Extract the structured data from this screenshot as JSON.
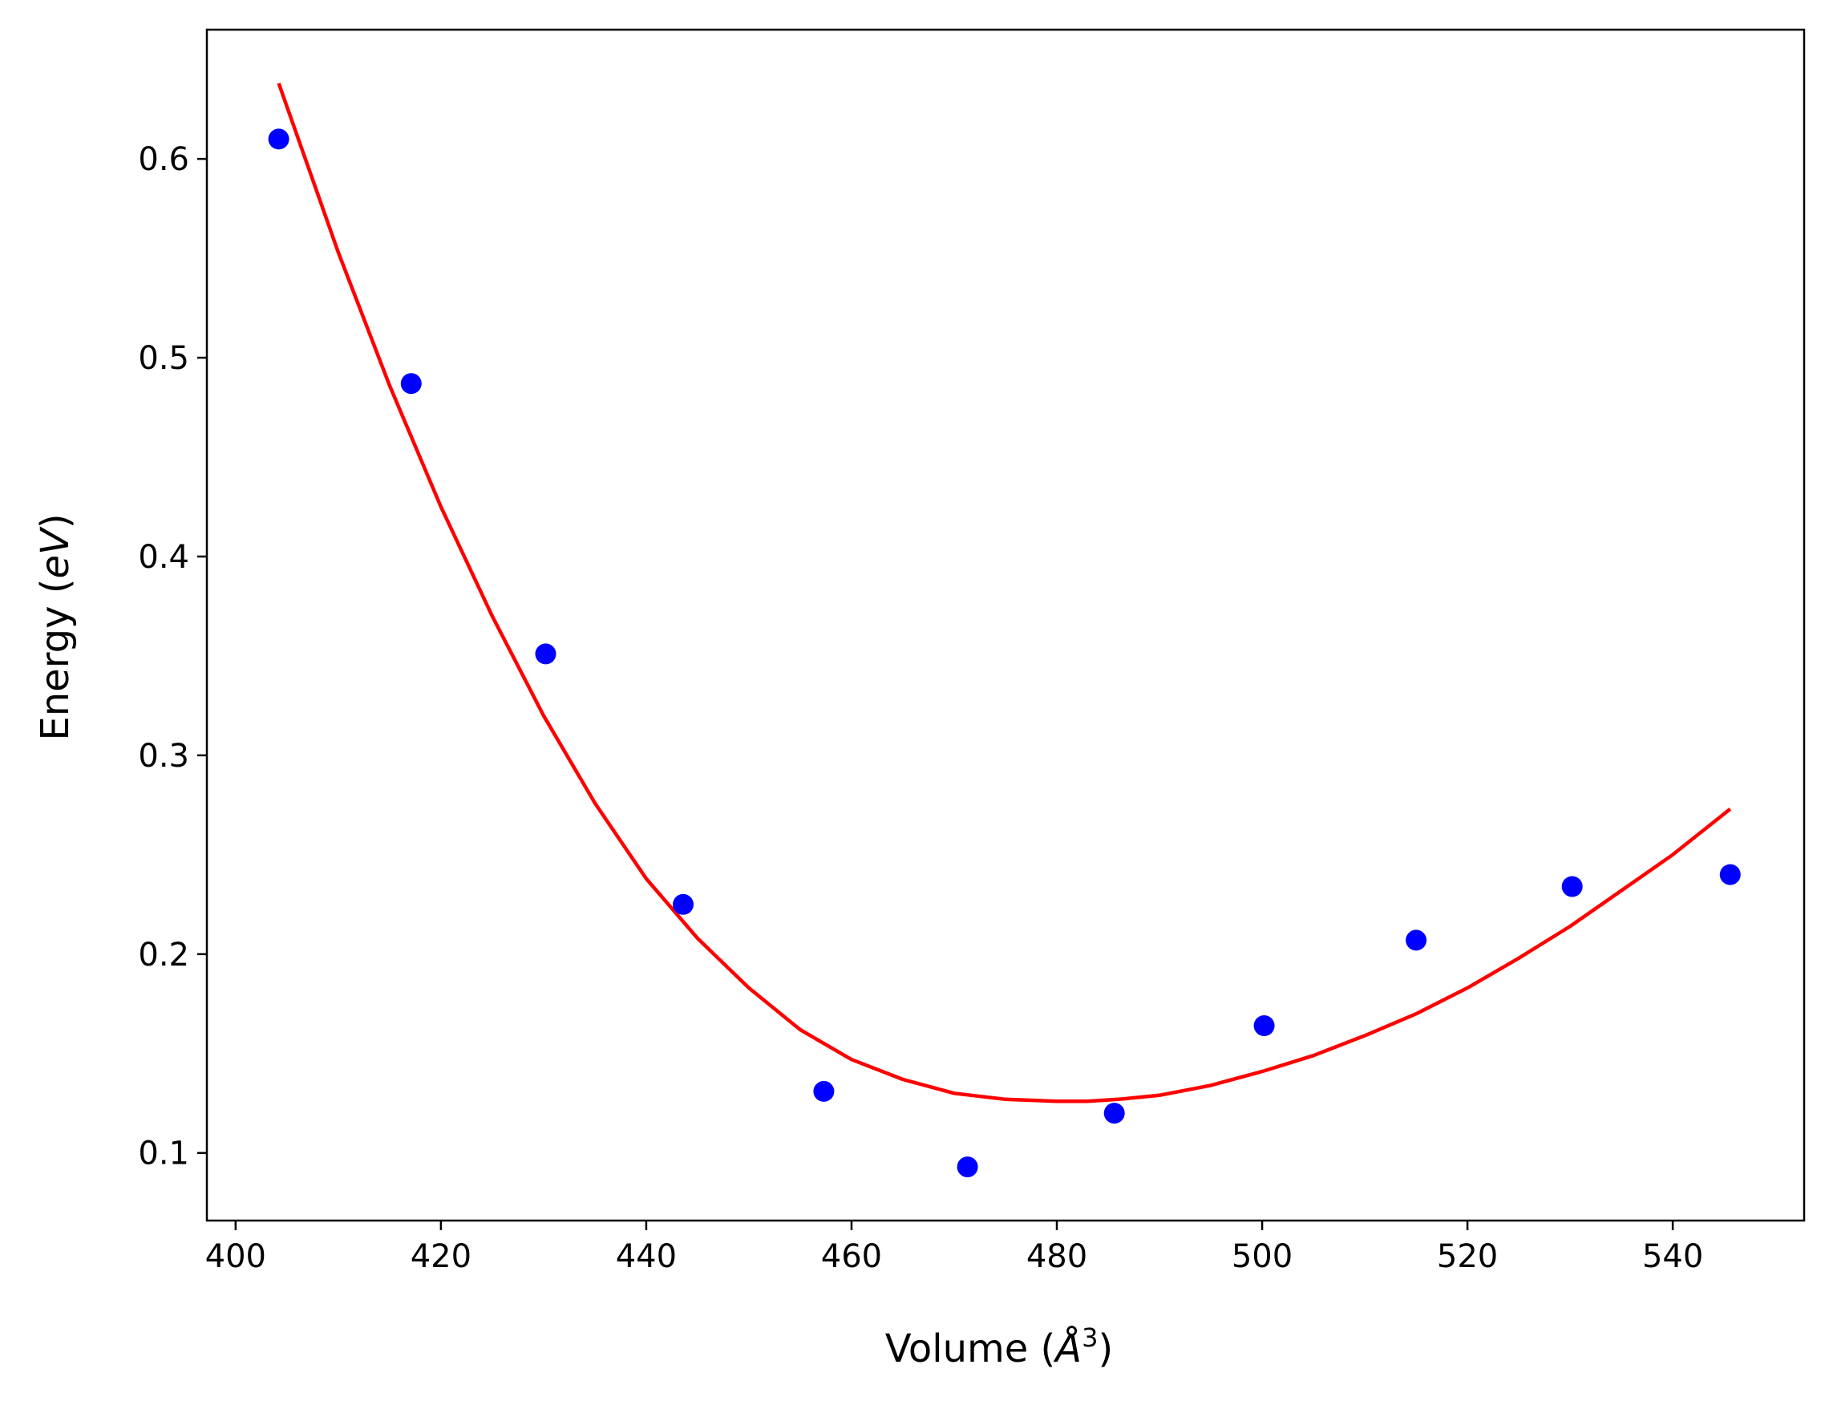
{
  "chart_data": {
    "type": "scatter",
    "xlabel_text": "Volume (",
    "xlabel_italic": "Å",
    "xlabel_sup": "3",
    "xlabel_close": ")",
    "ylabel_text": "Energy (",
    "ylabel_italic": "eV",
    "ylabel_close": ")",
    "xlim": [
      397.2,
      552.8
    ],
    "ylim": [
      0.066,
      0.665
    ],
    "xticks": [
      400,
      420,
      440,
      460,
      480,
      500,
      520,
      540
    ],
    "yticks": [
      0.1,
      0.2,
      0.3,
      0.4,
      0.5,
      0.6
    ],
    "xtick_labels": [
      "400",
      "420",
      "440",
      "460",
      "480",
      "500",
      "520",
      "540"
    ],
    "ytick_labels": [
      "0.1",
      "0.2",
      "0.3",
      "0.4",
      "0.5",
      "0.6"
    ],
    "grid": false,
    "series": [
      {
        "kind": "points",
        "color": "#0000ff",
        "x": [
          404.2,
          417.1,
          430.2,
          443.6,
          457.3,
          471.3,
          485.6,
          500.2,
          515.0,
          530.2,
          545.6
        ],
        "y": [
          0.61,
          0.487,
          0.351,
          0.225,
          0.131,
          0.093,
          0.12,
          0.164,
          0.207,
          0.234,
          0.24
        ]
      },
      {
        "kind": "fit-line",
        "color": "#ff0000",
        "x": [
          404.2,
          410,
          415,
          420,
          425,
          430,
          435,
          440,
          445,
          450,
          455,
          460,
          465,
          470,
          475,
          480,
          483,
          486,
          490,
          495,
          500,
          505,
          510,
          515,
          520,
          525,
          530,
          535,
          540,
          545.6
        ],
        "y": [
          0.638,
          0.553,
          0.486,
          0.425,
          0.37,
          0.32,
          0.276,
          0.238,
          0.208,
          0.183,
          0.162,
          0.147,
          0.137,
          0.13,
          0.127,
          0.126,
          0.126,
          0.127,
          0.129,
          0.134,
          0.141,
          0.149,
          0.159,
          0.17,
          0.183,
          0.198,
          0.214,
          0.232,
          0.25,
          0.273
        ]
      }
    ]
  }
}
